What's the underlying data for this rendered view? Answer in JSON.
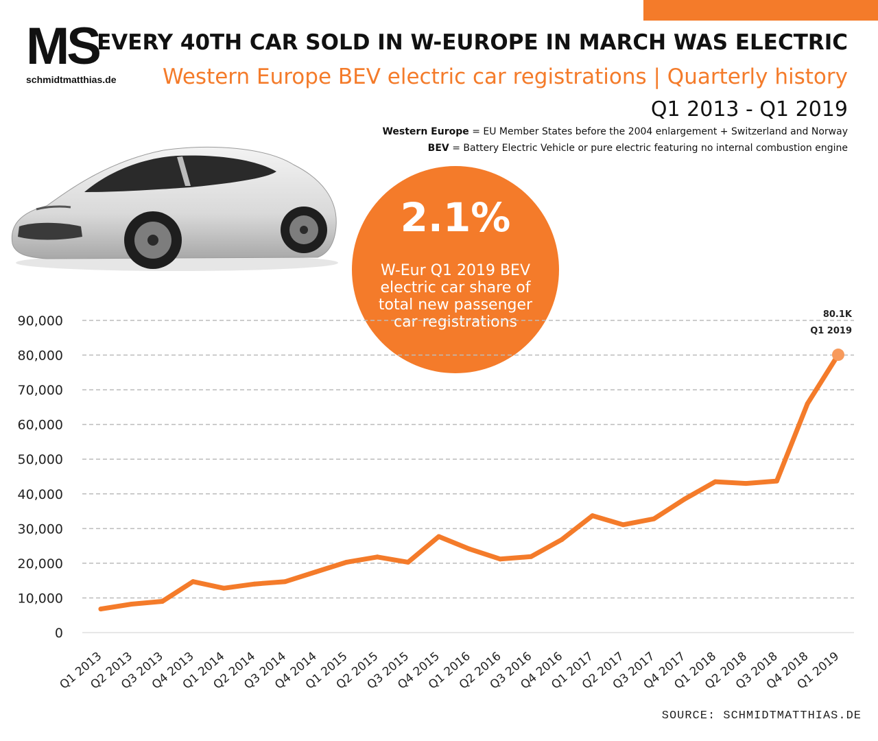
{
  "colors": {
    "accent": "#f47b2a",
    "text": "#111111",
    "grid": "#bbbbbb"
  },
  "logo": {
    "mark": "MS",
    "domain": "schmidtmatthias.de"
  },
  "header": {
    "headline": "EVERY 40TH CAR SOLD IN W-EUROPE IN MARCH WAS ELECTRIC",
    "subtitle": "Western Europe BEV electric car registrations | Quarterly history",
    "period": "Q1 2013 - Q1 2019"
  },
  "definitions": [
    {
      "term": "Western Europe",
      "text": " = EU Member States before the 2004 enlargement + Switzerland and Norway"
    },
    {
      "term": "BEV",
      "text": " = Battery Electric Vehicle or pure electric featuring no internal combustion engine"
    }
  ],
  "image": {
    "icon": "car-photo-icon"
  },
  "highlight": {
    "value": "2.1%",
    "caption": "W-Eur Q1 2019 BEV electric car share of total new passenger car registrations"
  },
  "source": "SOURCE: SCHMIDTMATTHIAS.DE",
  "chart_data": {
    "type": "line",
    "title": "Western Europe BEV electric car registrations | Quarterly history",
    "xlabel": "",
    "ylabel": "",
    "ylim": [
      0,
      90000
    ],
    "y_ticks": [
      0,
      10000,
      20000,
      30000,
      40000,
      50000,
      60000,
      70000,
      80000,
      90000
    ],
    "y_tick_labels": [
      "0",
      "10,000",
      "20,000",
      "30,000",
      "40,000",
      "50,000",
      "60,000",
      "70,000",
      "80,000",
      "90,000"
    ],
    "grid": true,
    "categories": [
      "Q1 2013",
      "Q2 2013",
      "Q3 2013",
      "Q4 2013",
      "Q1 2014",
      "Q2 2014",
      "Q3 2014",
      "Q4 2014",
      "Q1 2015",
      "Q2 2015",
      "Q3 2015",
      "Q4 2015",
      "Q1 2016",
      "Q2 2016",
      "Q3 2016",
      "Q4 2016",
      "Q1 2017",
      "Q2 2017",
      "Q3 2017",
      "Q4 2017",
      "Q1 2018",
      "Q2 2018",
      "Q3 2018",
      "Q4 2018",
      "Q1 2019"
    ],
    "series": [
      {
        "name": "BEV registrations",
        "values": [
          6800,
          8200,
          9000,
          14700,
          12800,
          14000,
          14700,
          17500,
          20300,
          21800,
          20300,
          27700,
          24100,
          21200,
          21900,
          26800,
          33700,
          31100,
          32800,
          38500,
          43500,
          43000,
          43700,
          66000,
          80100
        ]
      }
    ],
    "annotation": {
      "value_label": "80.1K",
      "period_label": "Q1 2019"
    }
  }
}
